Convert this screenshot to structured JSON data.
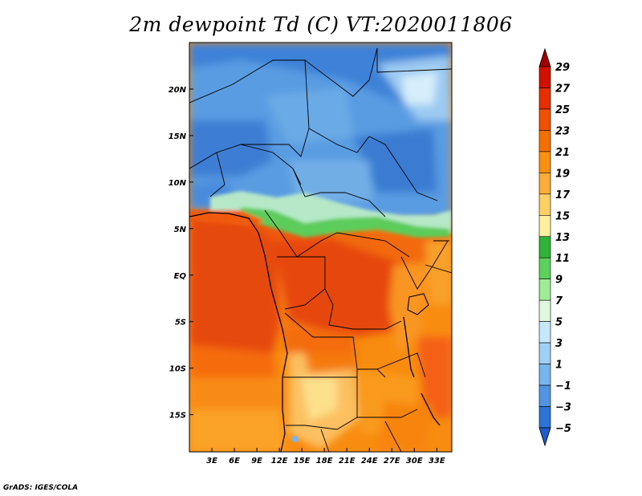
{
  "title": "2m dewpoint Td (C) VT:2020011806",
  "credit": "GrADS: IGES/COLA",
  "map": {
    "lon_range": [
      0,
      35
    ],
    "lat_range": [
      -19,
      25
    ],
    "lat_ticks": [
      {
        "value": 20,
        "label": "20N"
      },
      {
        "value": 15,
        "label": "15N"
      },
      {
        "value": 10,
        "label": "10N"
      },
      {
        "value": 5,
        "label": "5N"
      },
      {
        "value": 0,
        "label": "EQ"
      },
      {
        "value": -5,
        "label": "5S"
      },
      {
        "value": -10,
        "label": "10S"
      },
      {
        "value": -15,
        "label": "15S"
      }
    ],
    "lon_ticks": [
      {
        "value": 3,
        "label": "3E"
      },
      {
        "value": 6,
        "label": "6E"
      },
      {
        "value": 9,
        "label": "9E"
      },
      {
        "value": 12,
        "label": "12E"
      },
      {
        "value": 15,
        "label": "15E"
      },
      {
        "value": 18,
        "label": "18E"
      },
      {
        "value": 21,
        "label": "21E"
      },
      {
        "value": 24,
        "label": "24E"
      },
      {
        "value": 27,
        "label": "27E"
      },
      {
        "value": 30,
        "label": "30E"
      },
      {
        "value": 33,
        "label": "33E"
      }
    ]
  },
  "colorbar": {
    "labels": [
      "29",
      "27",
      "25",
      "23",
      "21",
      "19",
      "17",
      "15",
      "13",
      "11",
      "9",
      "7",
      "5",
      "3",
      "1",
      "−1",
      "−3",
      "−5"
    ],
    "colors": [
      "#b40000",
      "#d21000",
      "#e62e00",
      "#f05000",
      "#f57000",
      "#f99010",
      "#fcad38",
      "#fdd066",
      "#fff0a0",
      "#2eb436",
      "#5cd25c",
      "#a0ec96",
      "#e0f8e0",
      "#c6e8fa",
      "#a0d0f6",
      "#78b4ee",
      "#5094e2",
      "#2e74d8",
      "#1e5ac8"
    ],
    "top_color": "#a00000",
    "bottom_color": "#1e5ac8"
  },
  "chart_data": {
    "type": "heatmap",
    "title": "2m dewpoint Td (C) VT:2020011806",
    "variable": "2m dewpoint temperature",
    "units": "C",
    "valid_time": "2020011806",
    "x_ticks": [
      "3E",
      "6E",
      "9E",
      "12E",
      "15E",
      "18E",
      "21E",
      "24E",
      "27E",
      "30E",
      "33E"
    ],
    "y_ticks": [
      "20N",
      "15N",
      "10N",
      "5N",
      "EQ",
      "5S",
      "10S",
      "15S"
    ],
    "levels": [
      -5,
      -3,
      -1,
      1,
      3,
      5,
      7,
      9,
      11,
      13,
      15,
      17,
      19,
      21,
      23,
      25,
      27,
      29
    ],
    "lon_range": [
      0,
      35
    ],
    "lat_range": [
      -19,
      25
    ]
  }
}
